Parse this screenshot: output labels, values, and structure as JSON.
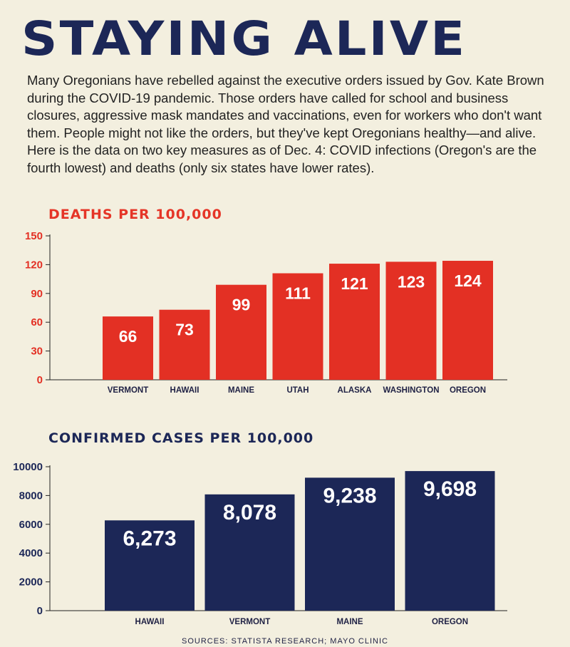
{
  "title": "STAYING ALIVE",
  "intro": "Many Oregonians have rebelled against the executive orders issued by Gov. Kate Brown during the COVID-19 pandemic. Those orders have called for school and business closures, aggressive mask mandates and vaccinations, even for workers who don't want them. People might not like the orders, but they've kept Oregonians healthy—and alive. Here is the data on two key measures as of Dec. 4: COVID infections (Oregon's are the fourth lowest) and deaths (only six states have lower rates).",
  "source": "SOURCES: STATISTA RESEARCH; MAYO CLINIC",
  "colors": {
    "deaths": "#e33024",
    "cases": "#1c2757",
    "background": "#f3efdf"
  },
  "chart_data": [
    {
      "type": "bar",
      "title": "DEATHS PER 100,000",
      "categories": [
        "VERMONT",
        "HAWAII",
        "MAINE",
        "UTAH",
        "ALASKA",
        "WASHINGTON",
        "OREGON"
      ],
      "values": [
        66,
        73,
        99,
        111,
        121,
        123,
        124
      ],
      "value_labels": [
        "66",
        "73",
        "99",
        "111",
        "121",
        "123",
        "124"
      ],
      "yticks": [
        0,
        30,
        60,
        90,
        120,
        150
      ],
      "ylim": [
        0,
        150
      ],
      "grid": false
    },
    {
      "type": "bar",
      "title": "CONFIRMED CASES PER 100,000",
      "categories": [
        "HAWAII",
        "VERMONT",
        "MAINE",
        "OREGON"
      ],
      "values": [
        6273,
        8078,
        9238,
        9698
      ],
      "value_labels": [
        "6,273",
        "8,078",
        "9,238",
        "9,698"
      ],
      "yticks": [
        0,
        2000,
        4000,
        6000,
        8000,
        10000
      ],
      "ylim": [
        0,
        10000
      ],
      "grid": false
    }
  ]
}
